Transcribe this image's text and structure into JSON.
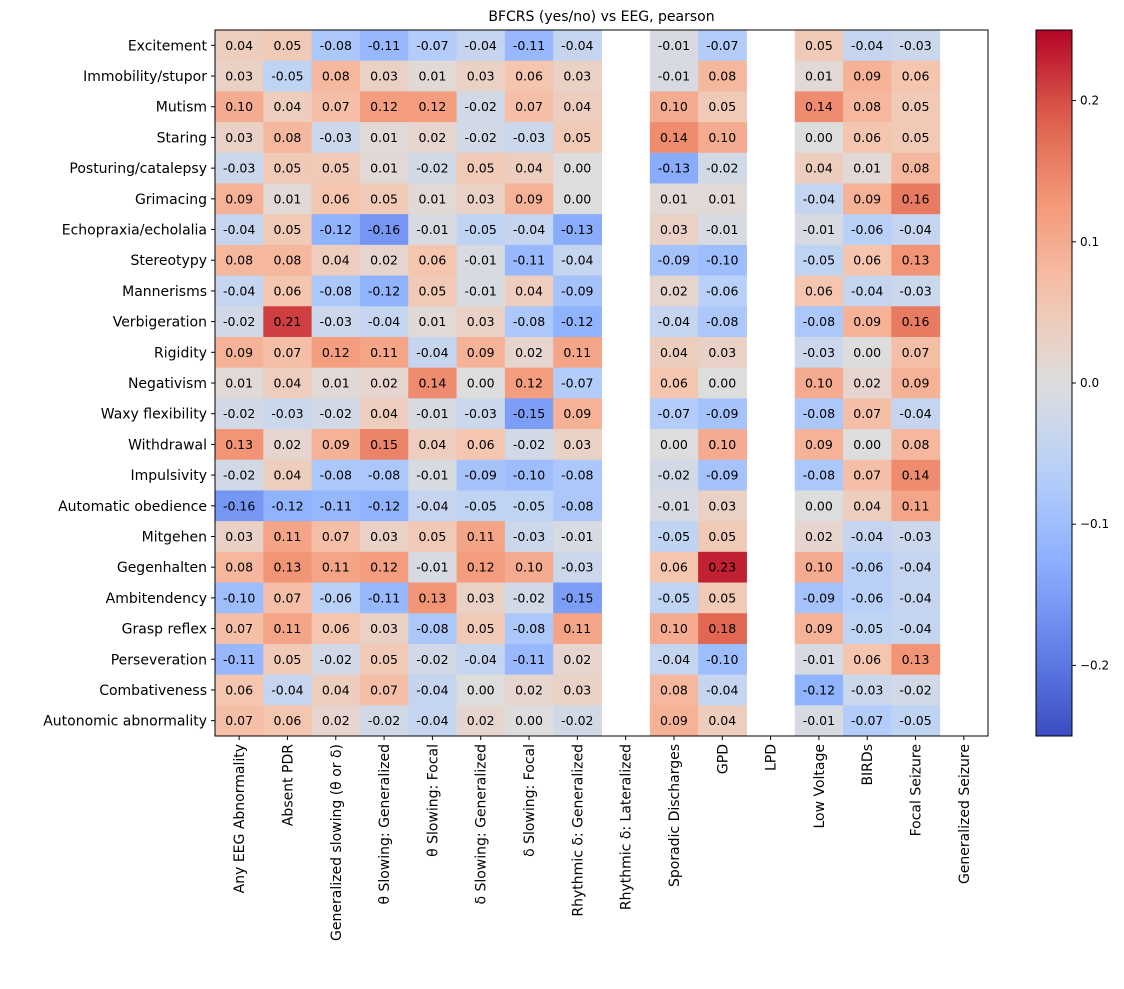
{
  "chart_data": {
    "type": "heatmap",
    "title": "BFCRS (yes/no) vs EEG, pearson",
    "xlabel": "",
    "ylabel": "",
    "colormap": "coolwarm",
    "color_range": [
      -0.25,
      0.25
    ],
    "colorbar": {
      "ticks": [
        -0.2,
        -0.1,
        0.0,
        0.1,
        0.2
      ],
      "tick_labels": [
        "−0.2",
        "−0.1",
        "0.0",
        "0.1",
        "0.2"
      ],
      "placement": "right"
    },
    "rows": [
      "Excitement",
      "Immobility/stupor",
      "Mutism",
      "Staring",
      "Posturing/catalepsy",
      "Grimacing",
      "Echopraxia/echolalia",
      "Stereotypy",
      "Mannerisms",
      "Verbigeration",
      "Rigidity",
      "Negativism",
      "Waxy flexibility",
      "Withdrawal",
      "Impulsivity",
      "Automatic obedience",
      "Mitgehen",
      "Gegenhalten",
      "Ambitendency",
      "Grasp reflex",
      "Perseveration",
      "Combativeness",
      "Autonomic abnormality"
    ],
    "columns": [
      "Any EEG Abnormality",
      "Absent PDR",
      "Generalized slowing (θ or δ)",
      "θ Slowing: Generalized",
      "θ Slowing: Focal",
      "δ Slowing: Generalized",
      "δ Slowing: Focal",
      "Rhythmic δ: Generalized",
      "Rhythmic δ: Lateralized",
      "Sporadic Discharges",
      "GPD",
      "LPD",
      "Low Voltage",
      "BIRDs",
      "Focal Seizure",
      "Generalized Seizure"
    ],
    "values": [
      [
        0.04,
        0.05,
        -0.08,
        -0.11,
        -0.07,
        -0.04,
        -0.11,
        -0.04,
        null,
        -0.01,
        -0.07,
        null,
        0.05,
        -0.04,
        -0.03,
        null
      ],
      [
        0.03,
        -0.05,
        0.08,
        0.03,
        0.01,
        0.03,
        0.06,
        0.03,
        null,
        -0.01,
        0.08,
        null,
        0.01,
        0.09,
        0.06,
        null
      ],
      [
        0.1,
        0.04,
        0.07,
        0.12,
        0.12,
        -0.02,
        0.07,
        0.04,
        null,
        0.1,
        0.05,
        null,
        0.14,
        0.08,
        0.05,
        null
      ],
      [
        0.03,
        0.08,
        -0.03,
        0.01,
        0.02,
        -0.02,
        -0.03,
        0.05,
        null,
        0.14,
        0.1,
        null,
        -0.0,
        0.06,
        0.05,
        null
      ],
      [
        -0.03,
        0.05,
        0.05,
        0.01,
        -0.02,
        0.05,
        0.04,
        -0.0,
        null,
        -0.13,
        -0.02,
        null,
        0.04,
        0.01,
        0.08,
        null
      ],
      [
        0.09,
        0.01,
        0.06,
        0.05,
        0.01,
        0.03,
        0.09,
        0.0,
        null,
        0.01,
        0.01,
        null,
        -0.04,
        0.09,
        0.16,
        null
      ],
      [
        -0.04,
        0.05,
        -0.12,
        -0.16,
        -0.01,
        -0.05,
        -0.04,
        -0.13,
        null,
        0.03,
        -0.01,
        null,
        -0.01,
        -0.06,
        -0.04,
        null
      ],
      [
        0.08,
        0.08,
        0.04,
        0.02,
        0.06,
        -0.01,
        -0.11,
        -0.04,
        null,
        -0.09,
        -0.1,
        null,
        -0.05,
        0.06,
        0.13,
        null
      ],
      [
        -0.04,
        0.06,
        -0.08,
        -0.12,
        0.05,
        -0.01,
        0.04,
        -0.09,
        null,
        0.02,
        -0.06,
        null,
        0.06,
        -0.04,
        -0.03,
        null
      ],
      [
        -0.02,
        0.21,
        -0.03,
        -0.04,
        0.01,
        0.03,
        -0.08,
        -0.12,
        null,
        -0.04,
        -0.08,
        null,
        -0.08,
        0.09,
        0.16,
        null
      ],
      [
        0.09,
        0.07,
        0.12,
        0.11,
        -0.04,
        0.09,
        0.02,
        0.11,
        null,
        0.04,
        0.03,
        null,
        -0.03,
        -0.0,
        0.07,
        null
      ],
      [
        0.01,
        0.04,
        0.01,
        0.02,
        0.14,
        0.0,
        0.12,
        -0.07,
        null,
        0.06,
        0.0,
        null,
        0.1,
        0.02,
        0.09,
        null
      ],
      [
        -0.02,
        -0.03,
        -0.02,
        0.04,
        -0.01,
        -0.03,
        -0.15,
        0.09,
        null,
        -0.07,
        -0.09,
        null,
        -0.08,
        0.07,
        -0.04,
        null
      ],
      [
        0.13,
        0.02,
        0.09,
        0.15,
        0.04,
        0.06,
        -0.02,
        0.03,
        null,
        0.0,
        0.1,
        null,
        0.09,
        0.0,
        0.08,
        null
      ],
      [
        -0.02,
        0.04,
        -0.08,
        -0.08,
        -0.01,
        -0.09,
        -0.1,
        -0.08,
        null,
        -0.02,
        -0.09,
        null,
        -0.08,
        0.07,
        0.14,
        null
      ],
      [
        -0.16,
        -0.12,
        -0.11,
        -0.12,
        -0.04,
        -0.05,
        -0.05,
        -0.08,
        null,
        -0.01,
        0.03,
        null,
        0.0,
        0.04,
        0.11,
        null
      ],
      [
        0.03,
        0.11,
        0.07,
        0.03,
        0.05,
        0.11,
        -0.03,
        -0.01,
        null,
        -0.05,
        0.05,
        null,
        0.02,
        -0.04,
        -0.03,
        null
      ],
      [
        0.08,
        0.13,
        0.11,
        0.12,
        -0.01,
        0.12,
        0.1,
        -0.03,
        null,
        0.06,
        0.23,
        null,
        0.1,
        -0.06,
        -0.04,
        null
      ],
      [
        -0.1,
        0.07,
        -0.06,
        -0.11,
        0.13,
        0.03,
        -0.02,
        -0.15,
        null,
        -0.05,
        0.05,
        null,
        -0.09,
        -0.06,
        -0.04,
        null
      ],
      [
        0.07,
        0.11,
        0.06,
        0.03,
        -0.08,
        0.05,
        -0.08,
        0.11,
        null,
        0.1,
        0.18,
        null,
        0.09,
        -0.05,
        -0.04,
        null
      ],
      [
        -0.11,
        0.05,
        -0.02,
        0.05,
        -0.02,
        -0.04,
        -0.11,
        0.02,
        null,
        -0.04,
        -0.1,
        null,
        -0.01,
        0.06,
        0.13,
        null
      ],
      [
        0.06,
        -0.04,
        0.04,
        0.07,
        -0.04,
        -0.0,
        0.02,
        0.03,
        null,
        0.08,
        -0.04,
        null,
        -0.12,
        -0.03,
        -0.02,
        null
      ],
      [
        0.07,
        0.06,
        0.02,
        -0.02,
        -0.04,
        0.02,
        0.0,
        -0.02,
        null,
        0.09,
        0.04,
        null,
        -0.01,
        -0.07,
        -0.05,
        null
      ]
    ],
    "value_format": "2-decimals",
    "grid": false
  }
}
